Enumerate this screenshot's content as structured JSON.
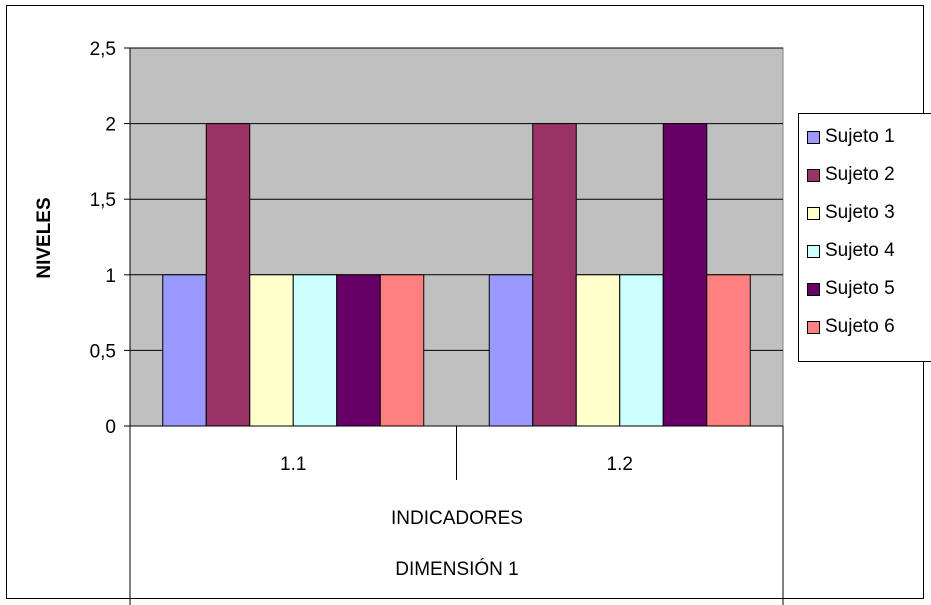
{
  "chart_data": {
    "type": "bar",
    "title": "",
    "ylabel": "NIVELES",
    "xlabel_levels": [
      "INDICADORES",
      "DIMENSIÓN 1"
    ],
    "categories": [
      "1.1",
      "1.2"
    ],
    "ylim": [
      0,
      2.5
    ],
    "yticks": [
      "0",
      "0,5",
      "1",
      "1,5",
      "2",
      "2,5"
    ],
    "grid": true,
    "legend_position": "right",
    "plot_background": "#c0c0c0",
    "series": [
      {
        "name": "Sujeto 1",
        "color": "#9999ff",
        "values": [
          1,
          1
        ]
      },
      {
        "name": "Sujeto 2",
        "color": "#993366",
        "values": [
          2,
          2
        ]
      },
      {
        "name": "Sujeto 3",
        "color": "#ffffcc",
        "values": [
          1,
          1
        ]
      },
      {
        "name": "Sujeto 4",
        "color": "#ccffff",
        "values": [
          1,
          1
        ]
      },
      {
        "name": "Sujeto 5",
        "color": "#660066",
        "values": [
          1,
          2
        ]
      },
      {
        "name": "Sujeto 6",
        "color": "#ff8080",
        "values": [
          1,
          1
        ]
      }
    ]
  }
}
